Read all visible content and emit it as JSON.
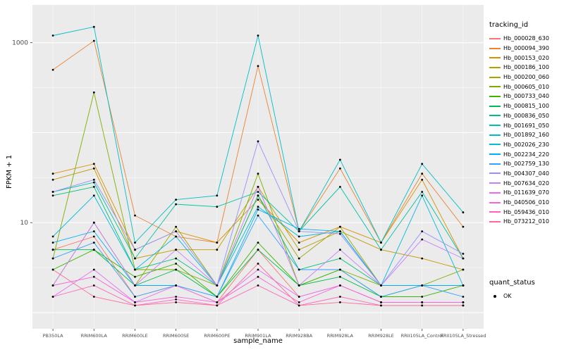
{
  "figure": {
    "background": "#FFFFFF",
    "panel_background": "#EBEBEB",
    "grid_major_color": "#FFFFFF",
    "grid_minor_color": "#FFFFFF",
    "tick_color": "#333333",
    "axis_text_color": "#4D4D4D"
  },
  "legend": {
    "tracking_title": "tracking_id",
    "quant_title": "quant_status",
    "quant_items": [
      {
        "label": "OK",
        "color": "#000000"
      }
    ]
  },
  "chart_data": {
    "type": "line",
    "title": "",
    "xlabel": "sample_name",
    "ylabel": "FPKM + 1",
    "y_scale": "log10",
    "ylim": [
      0.66,
      2600
    ],
    "y_major_breaks": [
      1,
      10,
      100,
      1000
    ],
    "y_labeled_breaks": [
      10,
      1000
    ],
    "y_tick_labels": [
      "10",
      "1000"
    ],
    "y_minor_breaks": [
      3.16,
      31.6,
      316
    ],
    "grid": true,
    "legend_position": "right",
    "point_color": "#000000",
    "categories": [
      "PB350LA",
      "RRIM600LA",
      "RRIM600LE",
      "RRIM600SE",
      "RRIM600PE",
      "RRIM901LA",
      "RRIM928BA",
      "RRIM928LA",
      "RRIM928LE",
      "RRII105LA_Control",
      "RRII105LA_Stressed"
    ],
    "series": [
      {
        "name": "Hb_000028_630",
        "color": "#F8766D",
        "values": [
          5,
          7,
          1.5,
          2,
          1.3,
          5,
          1.5,
          2,
          1.3,
          1.3,
          1.3
        ]
      },
      {
        "name": "Hb_000094_390",
        "color": "#EA8331",
        "values": [
          500,
          1050,
          12,
          7,
          6,
          550,
          8,
          40,
          6,
          35,
          9
        ]
      },
      {
        "name": "Hb_000153_020",
        "color": "#D89000",
        "values": [
          35,
          45,
          5,
          8,
          6,
          18,
          6,
          9,
          6,
          30,
          4
        ]
      },
      {
        "name": "Hb_000186_100",
        "color": "#C09B00",
        "values": [
          30,
          40,
          4,
          5,
          5,
          25,
          5,
          8,
          5,
          4,
          3
        ]
      },
      {
        "name": "Hb_000200_060",
        "color": "#A3A500",
        "values": [
          2,
          10,
          2,
          9,
          2,
          20,
          4,
          9,
          2,
          2,
          2
        ]
      },
      {
        "name": "Hb_000605_010",
        "color": "#7CAE00",
        "values": [
          4,
          280,
          3,
          3,
          2,
          35,
          2,
          3,
          2,
          2,
          3
        ]
      },
      {
        "name": "Hb_000733_040",
        "color": "#39B600",
        "values": [
          3,
          5,
          2.5,
          3.5,
          1.5,
          6,
          2,
          3,
          1.5,
          1.5,
          2
        ]
      },
      {
        "name": "Hb_000815_100",
        "color": "#00BB4E",
        "values": [
          5,
          5,
          2,
          3,
          1.5,
          5,
          2,
          2.5,
          1.5,
          2,
          2
        ]
      },
      {
        "name": "Hb_000836_050",
        "color": "#00BF7D",
        "values": [
          20,
          25,
          3,
          4,
          2,
          20,
          3,
          4,
          2,
          2,
          2
        ]
      },
      {
        "name": "Hb_001691_050",
        "color": "#00C1A3",
        "values": [
          22,
          28,
          4,
          16,
          15,
          22,
          8,
          25,
          5,
          22,
          4
        ]
      },
      {
        "name": "Hb_001892_160",
        "color": "#00BFC4",
        "values": [
          1200,
          1500,
          6,
          18,
          20,
          1200,
          8,
          50,
          6,
          45,
          13
        ]
      },
      {
        "name": "Hb_002026_230",
        "color": "#00BAE0",
        "values": [
          7,
          20,
          3,
          7,
          2,
          15,
          7,
          8,
          2,
          20,
          2
        ]
      },
      {
        "name": "Hb_002234_220",
        "color": "#00B0F6",
        "values": [
          6,
          8,
          2,
          2,
          1.5,
          14,
          8.5,
          8,
          2,
          2,
          2
        ]
      },
      {
        "name": "Hb_002759_130",
        "color": "#35A2FF",
        "values": [
          4,
          6,
          1.5,
          2,
          1.5,
          12,
          3,
          3,
          1.5,
          2,
          1.5
        ]
      },
      {
        "name": "Hb_004307_040",
        "color": "#9590FF",
        "values": [
          22,
          30,
          5,
          8,
          2,
          80,
          8,
          7.5,
          2,
          8,
          4.5
        ]
      },
      {
        "name": "Hb_007634_020",
        "color": "#C77CFF",
        "values": [
          2,
          10,
          2,
          5,
          2,
          25,
          2,
          5,
          2,
          6.5,
          4
        ]
      },
      {
        "name": "Hb_011639_070",
        "color": "#E76BF3",
        "values": [
          1.5,
          3,
          1.3,
          2,
          1.3,
          3,
          1.5,
          2,
          1.3,
          1.3,
          1.3
        ]
      },
      {
        "name": "Hb_040506_010",
        "color": "#FA62DB",
        "values": [
          2,
          2.5,
          1.3,
          1.5,
          1.3,
          2.5,
          1.3,
          2,
          1.3,
          1.3,
          1.3
        ]
      },
      {
        "name": "Hb_059436_010",
        "color": "#FF62BC",
        "values": [
          1.5,
          2,
          1.2,
          1.4,
          1.2,
          2,
          1.2,
          1.5,
          1.2,
          1.2,
          1.2
        ]
      },
      {
        "name": "Hb_073212_010",
        "color": "#FF6A98",
        "values": [
          3,
          1.5,
          1.2,
          1.3,
          1.2,
          3.5,
          1.2,
          1.3,
          1.2,
          1.2,
          1.2
        ]
      }
    ]
  }
}
